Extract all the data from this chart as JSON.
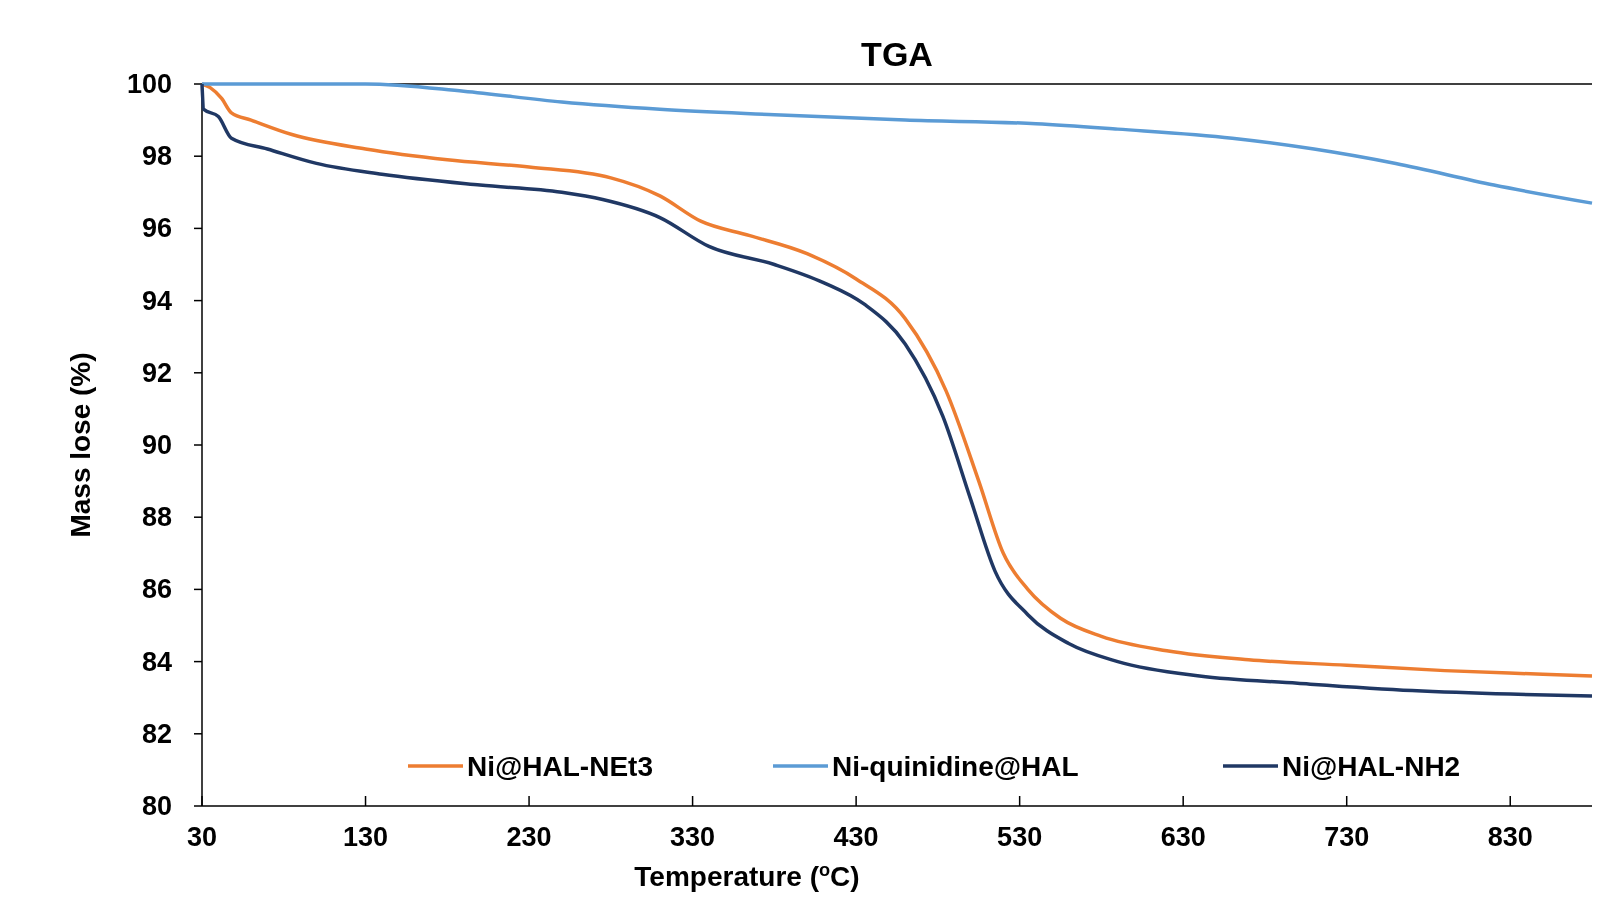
{
  "chart_data": {
    "type": "line",
    "title": "TGA",
    "xlabel": "Temperature ($^{o}$C)",
    "ylabel": "Mass lose (%)",
    "xlim": [
      30,
      880
    ],
    "xticks": [
      30,
      130,
      230,
      330,
      430,
      530,
      630,
      730,
      830
    ],
    "ylim": [
      80,
      100
    ],
    "yticks": [
      80,
      82,
      84,
      86,
      88,
      90,
      92,
      94,
      96,
      98,
      100
    ],
    "grid": false,
    "legend": "bottom",
    "marker": "none",
    "line_style": "solid",
    "series": [
      {
        "name": "Ni@HAL-NEt3",
        "color": "#ed7d31",
        "x": [
          30,
          35,
          42,
          48,
          60,
          85,
          130,
          180,
          230,
          280,
          310,
          335,
          365,
          400,
          430,
          460,
          485,
          505,
          520,
          535,
          555,
          580,
          620,
          670,
          730,
          790,
          850,
          880
        ],
        "values": [
          100,
          99.9,
          99.6,
          99.2,
          99.0,
          98.6,
          98.2,
          97.9,
          97.7,
          97.4,
          96.9,
          96.2,
          95.8,
          95.3,
          94.6,
          93.5,
          91.5,
          89,
          87,
          86,
          85.2,
          84.7,
          84.3,
          84.05,
          83.9,
          83.75,
          83.65,
          83.6
        ]
      },
      {
        "name": "Ni-quinidine@HAL",
        "color": "#5b9bd5",
        "x": [
          30,
          130,
          190,
          250,
          310,
          380,
          460,
          540,
          590,
          660,
          710,
          760,
          820,
          880
        ],
        "values": [
          100,
          100,
          99.8,
          99.5,
          99.3,
          99.15,
          99.0,
          98.9,
          98.75,
          98.5,
          98.2,
          97.8,
          97.2,
          96.7
        ]
      },
      {
        "name": "Ni@HAL-NH2",
        "color": "#203864",
        "x": [
          30,
          31,
          40,
          48,
          70,
          100,
          140,
          200,
          250,
          275,
          310,
          340,
          380,
          410,
          435,
          460,
          483,
          500,
          515,
          535,
          560,
          590,
          640,
          700,
          770,
          830,
          880
        ],
        "values": [
          100,
          99.3,
          99.1,
          98.5,
          98.2,
          97.8,
          97.5,
          97.2,
          97.0,
          96.8,
          96.3,
          95.5,
          95.0,
          94.5,
          93.9,
          92.8,
          90.8,
          88.5,
          86.5,
          85.3,
          84.5,
          84.0,
          83.6,
          83.4,
          83.2,
          83.1,
          83.05
        ]
      }
    ]
  }
}
